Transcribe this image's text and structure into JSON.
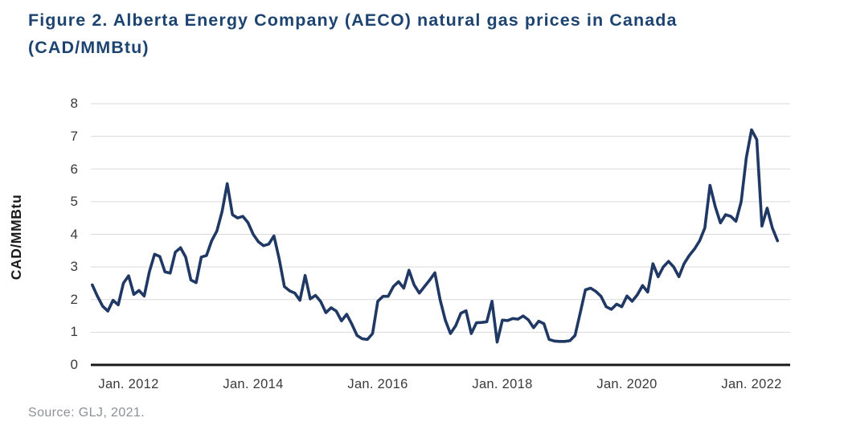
{
  "figure": {
    "title_line1": "Figure 2. Alberta Energy Company (AECO) natural gas prices in Canada",
    "title_line2": "(CAD/MMBtu)",
    "source": "Source: GLJ, 2021.",
    "title_color": "#1d4370"
  },
  "chart_data": {
    "type": "line",
    "title": "Figure 2. Alberta Energy Company (AECO) natural gas prices in Canada (CAD/MMBtu)",
    "xlabel": "",
    "ylabel": "CAD/MMBtu",
    "ylim": [
      0,
      8
    ],
    "y_ticks": [
      8,
      7,
      6,
      5,
      4,
      3,
      2,
      1,
      0
    ],
    "x_tick_labels": [
      "Jan. 2012",
      "Jan. 2014",
      "Jan. 2016",
      "Jan. 2018",
      "Jan. 2020",
      "Jan. 2022"
    ],
    "grid": "horizontal-only",
    "legend_position": "none",
    "line_color": "#1f3864",
    "gridline_color": "#d9d9d9",
    "axis_color": "#1a1a1a",
    "series": [
      {
        "name": "AECO natural gas price",
        "unit": "CAD/MMBtu",
        "frequency": "monthly",
        "start_month": "2011-06",
        "end_month": "2022-06",
        "values": [
          2.45,
          2.1,
          1.8,
          1.65,
          1.98,
          1.84,
          2.5,
          2.73,
          2.16,
          2.28,
          2.11,
          2.85,
          3.39,
          3.32,
          2.85,
          2.81,
          3.45,
          3.59,
          3.3,
          2.6,
          2.52,
          3.3,
          3.35,
          3.8,
          4.1,
          4.7,
          5.55,
          4.6,
          4.5,
          4.55,
          4.36,
          4.0,
          3.77,
          3.65,
          3.7,
          3.95,
          3.25,
          2.4,
          2.27,
          2.2,
          1.98,
          2.74,
          2.02,
          2.13,
          1.94,
          1.6,
          1.75,
          1.65,
          1.35,
          1.55,
          1.25,
          0.9,
          0.8,
          0.78,
          0.96,
          1.95,
          2.1,
          2.1,
          2.4,
          2.55,
          2.35,
          2.9,
          2.45,
          2.2,
          2.4,
          2.6,
          2.82,
          2.0,
          1.37,
          0.96,
          1.2,
          1.58,
          1.66,
          0.96,
          1.29,
          1.3,
          1.32,
          1.95,
          0.7,
          1.37,
          1.36,
          1.42,
          1.4,
          1.5,
          1.38,
          1.14,
          1.34,
          1.26,
          0.78,
          0.73,
          0.72,
          0.72,
          0.74,
          0.9,
          1.6,
          2.3,
          2.35,
          2.25,
          2.1,
          1.78,
          1.7,
          1.86,
          1.78,
          2.11,
          1.95,
          2.15,
          2.43,
          2.23,
          3.1,
          2.7,
          3.0,
          3.17,
          3.0,
          2.7,
          3.1,
          3.35,
          3.55,
          3.8,
          4.2,
          5.5,
          4.85,
          4.35,
          4.6,
          4.55,
          4.4,
          5.0,
          6.35,
          7.2,
          6.9,
          4.25,
          4.8,
          4.2,
          3.8
        ]
      }
    ]
  }
}
